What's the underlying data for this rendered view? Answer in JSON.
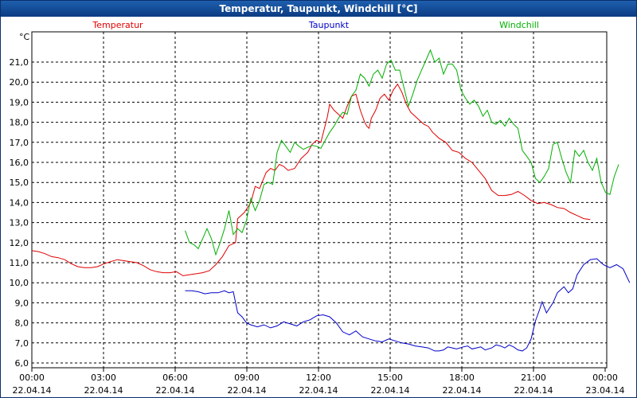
{
  "window": {
    "title": "Temperatur, Taupunkt, Windchill [°C]"
  },
  "colors": {
    "temperatur": "#e00000",
    "taupunkt": "#0000c8",
    "windchill": "#00b000",
    "grid": "#000000"
  },
  "chart_data": {
    "type": "line",
    "title": "Temperatur, Taupunkt, Windchill [°C]",
    "ylabel": "°C",
    "ylim": [
      6.0,
      22.0
    ],
    "xlim_hours": [
      0,
      24
    ],
    "yticks": [
      "6,0",
      "7,0",
      "8,0",
      "9,0",
      "10,0",
      "11,0",
      "12,0",
      "13,0",
      "14,0",
      "15,0",
      "16,0",
      "17,0",
      "18,0",
      "19,0",
      "20,0",
      "21,0"
    ],
    "xticks": [
      {
        "time": "00:00",
        "date": "22.04.14"
      },
      {
        "time": "03:00",
        "date": "22.04.14"
      },
      {
        "time": "06:00",
        "date": "22.04.14"
      },
      {
        "time": "09:00",
        "date": "22.04.14"
      },
      {
        "time": "12:00",
        "date": "22.04.14"
      },
      {
        "time": "15:00",
        "date": "22.04.14"
      },
      {
        "time": "18:00",
        "date": "22.04.14"
      },
      {
        "time": "21:00",
        "date": "22.04.14"
      },
      {
        "time": "00:00",
        "date": "23.04.14"
      }
    ],
    "grid": true,
    "legend": [
      "Temperatur",
      "Taupunkt",
      "Windchill"
    ],
    "series": [
      {
        "name": "Temperatur",
        "color": "#e00000",
        "points": [
          [
            0.0,
            11.6
          ],
          [
            0.3,
            11.55
          ],
          [
            0.6,
            11.45
          ],
          [
            0.9,
            11.3
          ],
          [
            1.2,
            11.25
          ],
          [
            1.5,
            11.15
          ],
          [
            1.8,
            10.95
          ],
          [
            2.1,
            10.8
          ],
          [
            2.4,
            10.75
          ],
          [
            2.7,
            10.75
          ],
          [
            3.0,
            10.8
          ],
          [
            3.3,
            10.95
          ],
          [
            3.6,
            11.05
          ],
          [
            3.9,
            11.15
          ],
          [
            4.2,
            11.1
          ],
          [
            4.5,
            11.05
          ],
          [
            4.8,
            11.0
          ],
          [
            5.1,
            10.85
          ],
          [
            5.4,
            10.65
          ],
          [
            5.7,
            10.55
          ],
          [
            6.0,
            10.5
          ],
          [
            6.3,
            10.5
          ],
          [
            6.6,
            10.55
          ],
          [
            6.9,
            10.35
          ],
          [
            7.2,
            10.4
          ],
          [
            7.5,
            10.45
          ],
          [
            7.8,
            10.5
          ],
          [
            8.1,
            10.6
          ],
          [
            8.4,
            10.9
          ],
          [
            8.7,
            11.3
          ],
          [
            9.0,
            11.85
          ],
          [
            9.3,
            12.0
          ],
          [
            9.4,
            13.2
          ],
          [
            9.7,
            13.5
          ],
          [
            10.0,
            14.0
          ],
          [
            10.2,
            14.8
          ],
          [
            10.4,
            14.7
          ],
          [
            10.7,
            15.5
          ],
          [
            10.9,
            15.7
          ],
          [
            11.1,
            15.6
          ],
          [
            11.3,
            15.9
          ],
          [
            11.5,
            15.8
          ],
          [
            11.7,
            15.6
          ],
          [
            12.0,
            15.7
          ],
          [
            12.3,
            16.2
          ],
          [
            12.6,
            16.5
          ],
          [
            12.8,
            16.9
          ],
          [
            13.0,
            17.1
          ],
          [
            13.2,
            17.0
          ],
          [
            13.5,
            18.3
          ],
          [
            13.6,
            18.9
          ],
          [
            13.8,
            18.6
          ],
          [
            14.0,
            18.4
          ],
          [
            14.2,
            18.2
          ],
          [
            14.4,
            18.8
          ],
          [
            14.6,
            19.3
          ],
          [
            14.8,
            19.4
          ],
          [
            15.0,
            18.6
          ],
          [
            15.2,
            18.0
          ],
          [
            15.3,
            17.8
          ],
          [
            15.4,
            17.7
          ],
          [
            15.5,
            18.2
          ],
          [
            15.7,
            18.6
          ],
          [
            15.9,
            19.2
          ],
          [
            16.1,
            19.4
          ],
          [
            16.3,
            19.1
          ],
          [
            16.5,
            19.6
          ],
          [
            16.7,
            19.9
          ],
          [
            16.9,
            19.5
          ],
          [
            17.1,
            18.9
          ],
          [
            17.3,
            18.5
          ],
          [
            17.5,
            18.3
          ],
          [
            17.7,
            18.1
          ],
          [
            17.9,
            17.9
          ],
          [
            18.1,
            17.8
          ],
          [
            18.3,
            17.5
          ],
          [
            18.6,
            17.2
          ],
          [
            18.9,
            17.0
          ],
          [
            19.2,
            16.6
          ],
          [
            19.5,
            16.5
          ],
          [
            19.8,
            16.2
          ],
          [
            20.1,
            16.0
          ],
          [
            20.4,
            15.6
          ],
          [
            20.7,
            15.2
          ],
          [
            21.0,
            14.6
          ],
          [
            21.3,
            14.35
          ],
          [
            21.6,
            14.35
          ],
          [
            21.9,
            14.4
          ],
          [
            22.2,
            14.55
          ],
          [
            22.5,
            14.35
          ],
          [
            22.8,
            14.1
          ],
          [
            23.1,
            13.95
          ],
          [
            23.4,
            14.0
          ],
          [
            23.7,
            13.9
          ],
          [
            24.0,
            13.75
          ],
          [
            24.3,
            13.7
          ],
          [
            24.6,
            13.5
          ],
          [
            24.9,
            13.35
          ],
          [
            25.2,
            13.2
          ],
          [
            25.5,
            13.15
          ]
        ]
      },
      {
        "name": "Taupunkt",
        "color": "#0000c8",
        "points": [
          [
            7.0,
            9.6
          ],
          [
            7.3,
            9.6
          ],
          [
            7.6,
            9.55
          ],
          [
            7.9,
            9.45
          ],
          [
            8.2,
            9.5
          ],
          [
            8.5,
            9.5
          ],
          [
            8.8,
            9.6
          ],
          [
            9.0,
            9.5
          ],
          [
            9.2,
            9.55
          ],
          [
            9.4,
            8.5
          ],
          [
            9.6,
            8.3
          ],
          [
            9.8,
            8.0
          ],
          [
            10.0,
            7.9
          ],
          [
            10.3,
            7.8
          ],
          [
            10.6,
            7.9
          ],
          [
            10.9,
            7.75
          ],
          [
            11.2,
            7.85
          ],
          [
            11.5,
            8.05
          ],
          [
            11.8,
            7.95
          ],
          [
            12.1,
            7.85
          ],
          [
            12.4,
            8.05
          ],
          [
            12.7,
            8.15
          ],
          [
            13.0,
            8.35
          ],
          [
            13.3,
            8.4
          ],
          [
            13.6,
            8.3
          ],
          [
            13.9,
            8.0
          ],
          [
            14.2,
            7.55
          ],
          [
            14.5,
            7.4
          ],
          [
            14.8,
            7.6
          ],
          [
            15.1,
            7.3
          ],
          [
            15.4,
            7.2
          ],
          [
            15.7,
            7.1
          ],
          [
            16.0,
            7.05
          ],
          [
            16.3,
            7.2
          ],
          [
            16.6,
            7.1
          ],
          [
            16.9,
            7.0
          ],
          [
            17.2,
            6.95
          ],
          [
            17.5,
            6.85
          ],
          [
            17.8,
            6.8
          ],
          [
            18.1,
            6.75
          ],
          [
            18.4,
            6.6
          ],
          [
            18.6,
            6.6
          ],
          [
            18.8,
            6.65
          ],
          [
            19.0,
            6.8
          ],
          [
            19.2,
            6.75
          ],
          [
            19.4,
            6.7
          ],
          [
            19.7,
            6.8
          ],
          [
            19.9,
            6.85
          ],
          [
            20.1,
            6.7
          ],
          [
            20.3,
            6.75
          ],
          [
            20.5,
            6.8
          ],
          [
            20.7,
            6.65
          ],
          [
            21.0,
            6.75
          ],
          [
            21.2,
            6.9
          ],
          [
            21.4,
            6.85
          ],
          [
            21.6,
            6.75
          ],
          [
            21.8,
            6.9
          ],
          [
            22.0,
            6.8
          ],
          [
            22.2,
            6.65
          ],
          [
            22.4,
            6.6
          ],
          [
            22.6,
            6.75
          ],
          [
            22.8,
            7.2
          ],
          [
            23.0,
            8.1
          ],
          [
            23.2,
            8.7
          ],
          [
            23.3,
            9.05
          ],
          [
            23.5,
            8.5
          ],
          [
            23.8,
            9.0
          ],
          [
            24.0,
            9.5
          ],
          [
            24.3,
            9.8
          ],
          [
            24.5,
            9.5
          ],
          [
            24.7,
            9.7
          ],
          [
            24.9,
            10.4
          ],
          [
            25.2,
            10.9
          ],
          [
            25.5,
            11.15
          ],
          [
            25.8,
            11.2
          ],
          [
            26.1,
            10.9
          ],
          [
            26.4,
            10.75
          ],
          [
            26.7,
            10.9
          ],
          [
            27.0,
            10.7
          ],
          [
            27.3,
            10.0
          ]
        ]
      },
      {
        "name": "Windchill",
        "color": "#00b000",
        "points": [
          [
            7.0,
            12.6
          ],
          [
            7.2,
            12.0
          ],
          [
            7.4,
            11.9
          ],
          [
            7.6,
            11.7
          ],
          [
            7.8,
            12.2
          ],
          [
            8.0,
            12.7
          ],
          [
            8.2,
            12.2
          ],
          [
            8.4,
            11.4
          ],
          [
            8.6,
            12.0
          ],
          [
            8.8,
            12.7
          ],
          [
            9.0,
            13.6
          ],
          [
            9.2,
            12.4
          ],
          [
            9.4,
            12.7
          ],
          [
            9.6,
            12.5
          ],
          [
            9.8,
            13.1
          ],
          [
            10.0,
            14.2
          ],
          [
            10.2,
            13.6
          ],
          [
            10.4,
            14.1
          ],
          [
            10.6,
            14.9
          ],
          [
            10.8,
            15.0
          ],
          [
            11.0,
            14.9
          ],
          [
            11.2,
            16.5
          ],
          [
            11.4,
            17.1
          ],
          [
            11.6,
            16.8
          ],
          [
            11.8,
            16.5
          ],
          [
            12.0,
            17.0
          ],
          [
            12.2,
            16.8
          ],
          [
            12.4,
            16.65
          ],
          [
            12.6,
            16.75
          ],
          [
            12.8,
            16.85
          ],
          [
            13.0,
            16.8
          ],
          [
            13.2,
            16.7
          ],
          [
            13.4,
            17.1
          ],
          [
            13.6,
            17.5
          ],
          [
            13.8,
            17.8
          ],
          [
            14.0,
            18.2
          ],
          [
            14.2,
            18.5
          ],
          [
            14.4,
            18.4
          ],
          [
            14.6,
            19.3
          ],
          [
            14.8,
            19.6
          ],
          [
            15.0,
            20.4
          ],
          [
            15.2,
            20.2
          ],
          [
            15.4,
            19.8
          ],
          [
            15.6,
            20.4
          ],
          [
            15.8,
            20.6
          ],
          [
            16.0,
            20.2
          ],
          [
            16.2,
            20.9
          ],
          [
            16.4,
            21.1
          ],
          [
            16.6,
            20.6
          ],
          [
            16.8,
            20.6
          ],
          [
            17.0,
            19.7
          ],
          [
            17.2,
            18.8
          ],
          [
            17.4,
            19.4
          ],
          [
            17.6,
            20.1
          ],
          [
            17.8,
            20.6
          ],
          [
            18.0,
            21.1
          ],
          [
            18.2,
            21.6
          ],
          [
            18.4,
            21.0
          ],
          [
            18.6,
            21.2
          ],
          [
            18.8,
            20.4
          ],
          [
            19.0,
            20.9
          ],
          [
            19.2,
            20.9
          ],
          [
            19.4,
            20.6
          ],
          [
            19.6,
            19.6
          ],
          [
            19.8,
            19.2
          ],
          [
            20.0,
            18.9
          ],
          [
            20.2,
            19.1
          ],
          [
            20.4,
            18.8
          ],
          [
            20.6,
            18.3
          ],
          [
            20.8,
            18.6
          ],
          [
            21.0,
            18.0
          ],
          [
            21.2,
            17.9
          ],
          [
            21.4,
            18.1
          ],
          [
            21.6,
            17.8
          ],
          [
            21.8,
            18.2
          ],
          [
            22.0,
            17.9
          ],
          [
            22.2,
            17.7
          ],
          [
            22.4,
            16.6
          ],
          [
            22.6,
            16.3
          ],
          [
            22.8,
            16.0
          ],
          [
            23.0,
            15.2
          ],
          [
            23.2,
            15.0
          ],
          [
            23.4,
            15.3
          ],
          [
            23.6,
            15.7
          ],
          [
            23.8,
            16.9
          ],
          [
            24.0,
            17.0
          ],
          [
            24.2,
            16.2
          ],
          [
            24.4,
            15.5
          ],
          [
            24.6,
            15.0
          ],
          [
            24.8,
            16.6
          ],
          [
            25.0,
            16.3
          ],
          [
            25.2,
            16.6
          ],
          [
            25.4,
            16.0
          ],
          [
            25.6,
            15.6
          ],
          [
            25.8,
            16.2
          ],
          [
            26.0,
            15.0
          ],
          [
            26.2,
            14.5
          ],
          [
            26.4,
            14.4
          ],
          [
            26.6,
            15.3
          ],
          [
            26.8,
            15.9
          ]
        ]
      }
    ]
  }
}
